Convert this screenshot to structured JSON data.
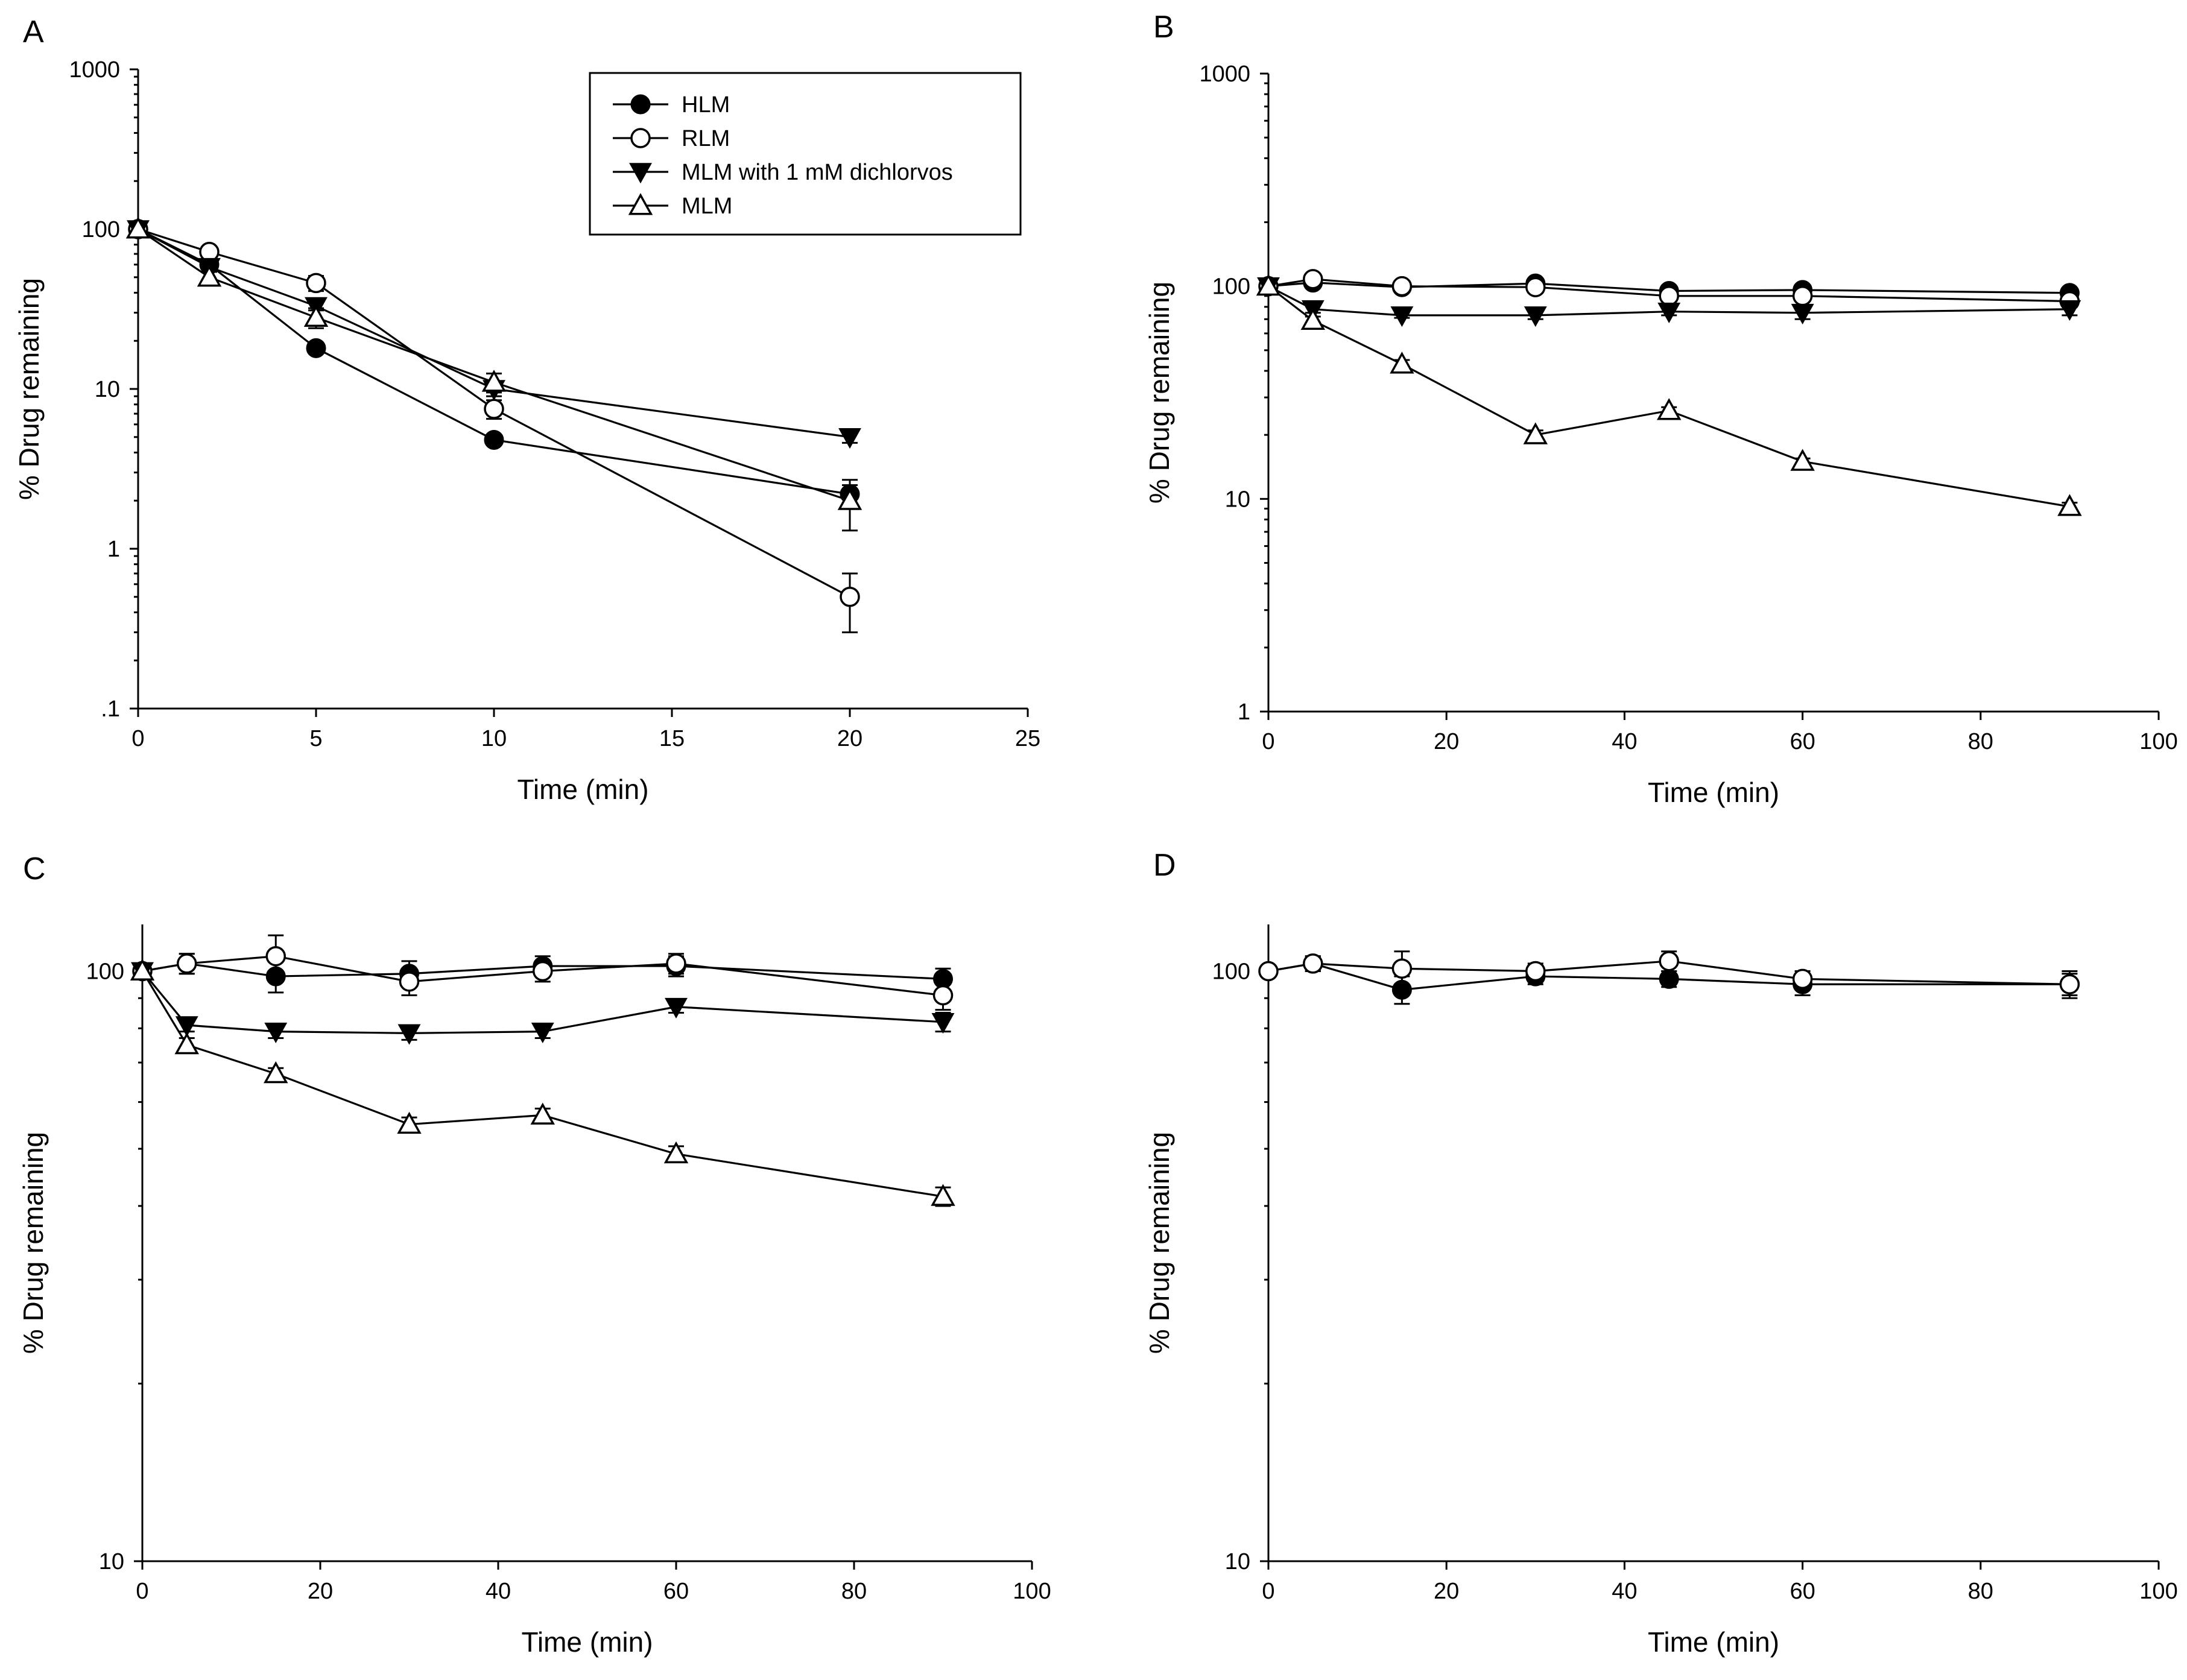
{
  "legend": {
    "entries": [
      {
        "label": "HLM",
        "marker": "filled-circle"
      },
      {
        "label": "RLM",
        "marker": "open-circle"
      },
      {
        "label": "MLM with 1 mM dichlorvos",
        "marker": "filled-triangle-down"
      },
      {
        "label": "MLM",
        "marker": "open-triangle-up"
      }
    ]
  },
  "chart_data": [
    {
      "panel": "A",
      "type": "line",
      "xlabel": "Time (min)",
      "ylabel": "% Drug remaining",
      "yscale": "log",
      "xlim": [
        0,
        25
      ],
      "ylim": [
        0.1,
        1000
      ],
      "xticks": [
        0,
        5,
        10,
        15,
        20,
        25
      ],
      "xtick_labels": [
        "0",
        "5",
        "10",
        "15",
        "20",
        "25"
      ],
      "yticks": [
        0.1,
        1,
        10,
        100,
        1000
      ],
      "ytick_labels": [
        ".1",
        "1",
        "10",
        "100",
        "1000"
      ],
      "legend_position": "top-right",
      "series": [
        {
          "name": "HLM",
          "marker": "filled-circle",
          "x": [
            0,
            2,
            5,
            10,
            20
          ],
          "y": [
            100,
            60,
            18,
            4.8,
            2.2
          ],
          "err": [
            0,
            3,
            1,
            0.2,
            0.3
          ]
        },
        {
          "name": "RLM",
          "marker": "open-circle",
          "x": [
            0,
            2,
            5,
            10,
            20
          ],
          "y": [
            100,
            72,
            46,
            7.5,
            0.5
          ],
          "err": [
            0,
            4,
            5,
            1,
            0.2
          ]
        },
        {
          "name": "MLM with 1 mM dichlorvos",
          "marker": "filled-triangle-down",
          "x": [
            0,
            2,
            5,
            10,
            20
          ],
          "y": [
            100,
            58,
            33,
            10,
            5
          ],
          "err": [
            0,
            3,
            2,
            1,
            0.4
          ]
        },
        {
          "name": "MLM",
          "marker": "open-triangle-up",
          "x": [
            0,
            2,
            5,
            10,
            20
          ],
          "y": [
            100,
            50,
            28,
            11,
            2
          ],
          "err": [
            0,
            4,
            4,
            1.5,
            0.7
          ]
        }
      ]
    },
    {
      "panel": "B",
      "type": "line",
      "xlabel": "Time (min)",
      "ylabel": "% Drug remaining",
      "yscale": "log",
      "xlim": [
        0,
        100
      ],
      "ylim": [
        1,
        1000
      ],
      "xticks": [
        0,
        20,
        40,
        60,
        80,
        100
      ],
      "xtick_labels": [
        "0",
        "20",
        "40",
        "60",
        "80",
        "100"
      ],
      "yticks": [
        1,
        10,
        100,
        1000
      ],
      "ytick_labels": [
        "1",
        "10",
        "100",
        "1000"
      ],
      "series": [
        {
          "name": "HLM",
          "marker": "filled-circle",
          "x": [
            0,
            5,
            15,
            30,
            45,
            60,
            90
          ],
          "y": [
            100,
            104,
            99,
            103,
            95,
            96,
            93
          ],
          "err": [
            0,
            3,
            3,
            4,
            3,
            4,
            3
          ]
        },
        {
          "name": "RLM",
          "marker": "open-circle",
          "x": [
            0,
            5,
            15,
            30,
            45,
            60,
            90
          ],
          "y": [
            100,
            108,
            100,
            99,
            90,
            90,
            85
          ],
          "err": [
            0,
            4,
            3,
            6,
            4,
            4,
            5
          ]
        },
        {
          "name": "MLM with 1 mM dichlorvos",
          "marker": "filled-triangle-down",
          "x": [
            0,
            5,
            15,
            30,
            45,
            60,
            90
          ],
          "y": [
            100,
            78,
            73,
            73,
            76,
            75,
            78
          ],
          "err": [
            0,
            3,
            2,
            3,
            3,
            5,
            5
          ]
        },
        {
          "name": "MLM",
          "marker": "open-triangle-up",
          "x": [
            0,
            5,
            15,
            30,
            45,
            60,
            90
          ],
          "y": [
            100,
            69,
            43,
            20,
            26,
            15,
            9.2
          ],
          "err": [
            0,
            3,
            2,
            1,
            1,
            0.5,
            0.4
          ]
        }
      ]
    },
    {
      "panel": "C",
      "type": "line",
      "xlabel": "Time (min)",
      "ylabel": "% Drug remaining",
      "yscale": "log",
      "xlim": [
        0,
        100
      ],
      "ylim": [
        10,
        120
      ],
      "xticks": [
        0,
        20,
        40,
        60,
        80,
        100
      ],
      "xtick_labels": [
        "0",
        "20",
        "40",
        "60",
        "80",
        "100"
      ],
      "yticks": [
        10,
        100
      ],
      "ytick_labels": [
        "10",
        "100"
      ],
      "series": [
        {
          "name": "HLM",
          "marker": "filled-circle",
          "x": [
            0,
            5,
            15,
            30,
            45,
            60,
            90
          ],
          "y": [
            100,
            103,
            98,
            99,
            102,
            102,
            97
          ],
          "err": [
            0,
            4,
            6,
            5,
            4,
            4,
            4
          ]
        },
        {
          "name": "RLM",
          "marker": "open-circle",
          "x": [
            0,
            5,
            15,
            30,
            45,
            60,
            90
          ],
          "y": [
            100,
            103,
            106,
            96,
            100,
            103,
            91
          ],
          "err": [
            0,
            4,
            9,
            5,
            4,
            4,
            5
          ]
        },
        {
          "name": "MLM with 1 mM dichlorvos",
          "marker": "filled-triangle-down",
          "x": [
            0,
            5,
            15,
            30,
            45,
            60,
            90
          ],
          "y": [
            100,
            81,
            79,
            78.5,
            79,
            87,
            82
          ],
          "err": [
            0,
            2,
            2,
            2,
            2,
            2,
            3
          ]
        },
        {
          "name": "MLM",
          "marker": "open-triangle-up",
          "x": [
            0,
            5,
            15,
            30,
            45,
            60,
            90
          ],
          "y": [
            100,
            75,
            67,
            55,
            57,
            49,
            41.5
          ],
          "err": [
            0,
            2,
            1.5,
            1.5,
            1.5,
            1.5,
            1.5
          ]
        }
      ]
    },
    {
      "panel": "D",
      "type": "line",
      "xlabel": "Time (min)",
      "ylabel": "% Drug remaining",
      "yscale": "log",
      "xlim": [
        0,
        100
      ],
      "ylim": [
        10,
        120
      ],
      "xticks": [
        0,
        20,
        40,
        60,
        80,
        100
      ],
      "xtick_labels": [
        "0",
        "20",
        "40",
        "60",
        "80",
        "100"
      ],
      "yticks": [
        10,
        100
      ],
      "ytick_labels": [
        "10",
        "100"
      ],
      "series": [
        {
          "name": "HLM",
          "marker": "filled-circle",
          "x": [
            0,
            5,
            15,
            30,
            45,
            60,
            90
          ],
          "y": [
            100,
            103,
            93,
            98,
            97,
            95,
            95
          ],
          "err": [
            0,
            3,
            5,
            3,
            3,
            4,
            4
          ]
        },
        {
          "name": "RLM",
          "marker": "open-circle",
          "x": [
            0,
            5,
            15,
            30,
            45,
            60,
            90
          ],
          "y": [
            100,
            103,
            101,
            100,
            104,
            97,
            95
          ],
          "err": [
            0,
            3,
            7,
            3,
            4,
            3,
            5
          ]
        }
      ]
    }
  ]
}
